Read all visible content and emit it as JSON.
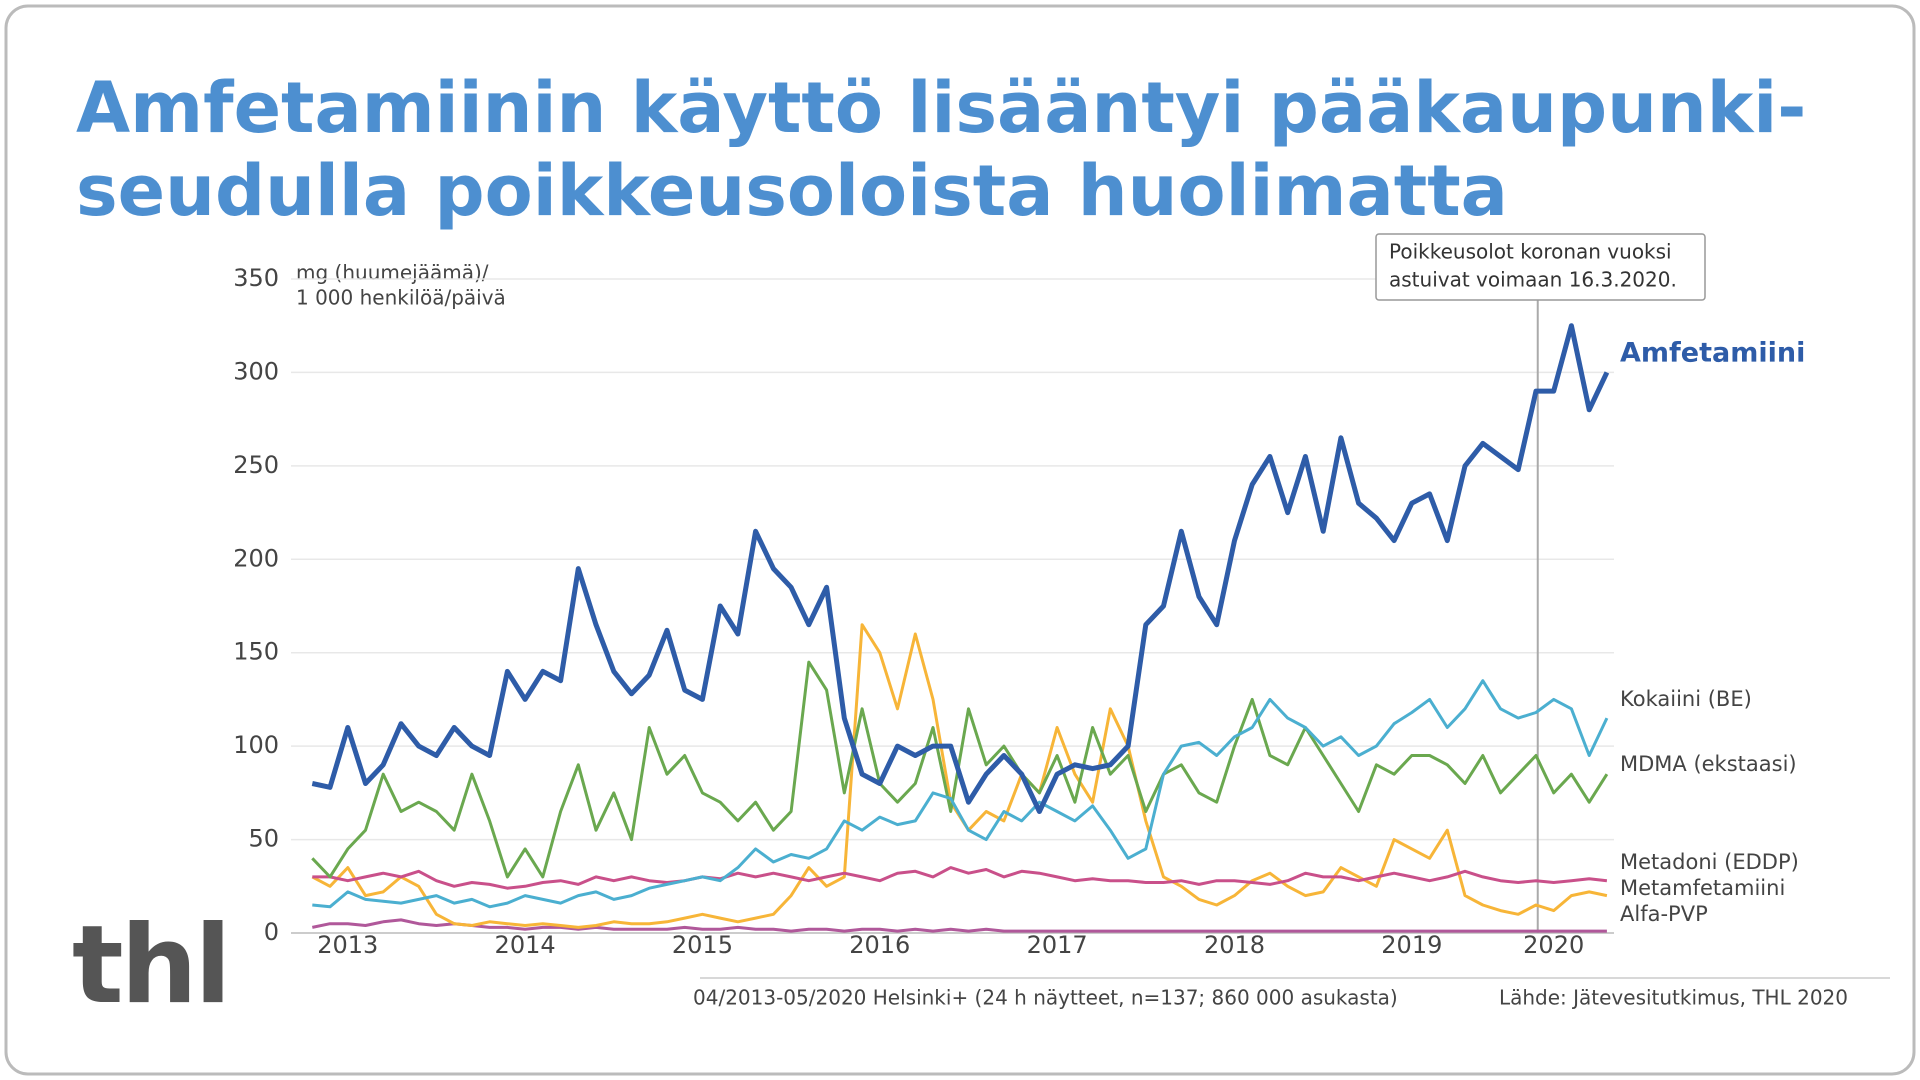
{
  "chart_data": {
    "type": "line",
    "title": [
      "Amfetamiinin käyttö lisääntyi pääkaupunki-",
      "seudulla poikkeusoloista huolimatta"
    ],
    "ylabel": [
      "mg (huumejäämä)/",
      "1 000 henkilöä/päivä"
    ],
    "annotation": {
      "text": [
        "Poikkeusolot koronan vuoksi",
        "astuivat voimaan 16.3.2020."
      ],
      "x": 2020.21
    },
    "note": "04/2013-05/2020 Helsinki+ (24 h näytteet, n=137; 860 000 asukasta)",
    "source": "Lähde: Jätevesitutkimus, THL 2020",
    "logo": "thl",
    "xlim": [
      2013.18,
      2020.64
    ],
    "ylim": [
      0,
      350
    ],
    "yticks": [
      0,
      50,
      100,
      150,
      200,
      250,
      300,
      350
    ],
    "xticks": [
      {
        "value": 2013.5,
        "label": "2013"
      },
      {
        "value": 2014.5,
        "label": "2014"
      },
      {
        "value": 2015.5,
        "label": "2015"
      },
      {
        "value": 2016.5,
        "label": "2016"
      },
      {
        "value": 2017.5,
        "label": "2017"
      },
      {
        "value": 2018.5,
        "label": "2018"
      },
      {
        "value": 2019.5,
        "label": "2019"
      },
      {
        "value": 2020.3,
        "label": "2020"
      }
    ],
    "grid": true,
    "x": [
      2013.3,
      2013.4,
      2013.5,
      2013.6,
      2013.7,
      2013.8,
      2013.9,
      2014.0,
      2014.1,
      2014.2,
      2014.3,
      2014.4,
      2014.5,
      2014.6,
      2014.7,
      2014.8,
      2014.9,
      2015.0,
      2015.1,
      2015.2,
      2015.3,
      2015.4,
      2015.5,
      2015.6,
      2015.7,
      2015.8,
      2015.9,
      2016.0,
      2016.1,
      2016.2,
      2016.3,
      2016.4,
      2016.5,
      2016.6,
      2016.7,
      2016.8,
      2016.9,
      2017.0,
      2017.1,
      2017.2,
      2017.3,
      2017.4,
      2017.5,
      2017.6,
      2017.7,
      2017.8,
      2017.9,
      2018.0,
      2018.1,
      2018.2,
      2018.3,
      2018.4,
      2018.5,
      2018.6,
      2018.7,
      2018.8,
      2018.9,
      2019.0,
      2019.1,
      2019.2,
      2019.3,
      2019.4,
      2019.5,
      2019.6,
      2019.7,
      2019.8,
      2019.9,
      2020.0,
      2020.1,
      2020.2,
      2020.3,
      2020.4,
      2020.5,
      2020.6
    ],
    "series": [
      {
        "name": "Amfetamiini",
        "color": "#2e5ca8",
        "values": [
          80,
          78,
          110,
          80,
          90,
          112,
          100,
          95,
          110,
          100,
          95,
          140,
          125,
          140,
          135,
          195,
          165,
          140,
          128,
          138,
          162,
          130,
          125,
          175,
          160,
          215,
          195,
          185,
          165,
          185,
          115,
          85,
          80,
          100,
          95,
          100,
          100,
          70,
          85,
          95,
          85,
          65,
          85,
          90,
          88,
          90,
          100,
          165,
          175,
          215,
          180,
          165,
          210,
          240,
          255,
          225,
          255,
          215,
          265,
          230,
          222,
          210,
          230,
          235,
          210,
          250,
          262,
          255,
          248,
          290,
          290,
          325,
          280,
          300
        ]
      },
      {
        "name": "Kokaiini (BE)",
        "color": "#4bafd0",
        "values": [
          15,
          14,
          22,
          18,
          17,
          16,
          18,
          20,
          16,
          18,
          14,
          16,
          20,
          18,
          16,
          20,
          22,
          18,
          20,
          24,
          26,
          28,
          30,
          28,
          35,
          45,
          38,
          42,
          40,
          45,
          60,
          55,
          62,
          58,
          60,
          75,
          72,
          55,
          50,
          65,
          60,
          70,
          65,
          60,
          68,
          55,
          40,
          45,
          85,
          100,
          102,
          95,
          105,
          110,
          125,
          115,
          110,
          100,
          105,
          95,
          100,
          112,
          118,
          125,
          110,
          120,
          135,
          120,
          115,
          118,
          125,
          120,
          95,
          115
        ]
      },
      {
        "name": "MDMA (ekstaasi)",
        "color": "#6aa84f",
        "values": [
          40,
          30,
          45,
          55,
          85,
          65,
          70,
          65,
          55,
          85,
          60,
          30,
          45,
          30,
          65,
          90,
          55,
          75,
          50,
          110,
          85,
          95,
          75,
          70,
          60,
          70,
          55,
          65,
          145,
          130,
          75,
          120,
          80,
          70,
          80,
          110,
          65,
          120,
          90,
          100,
          85,
          75,
          95,
          70,
          110,
          85,
          95,
          65,
          85,
          90,
          75,
          70,
          100,
          125,
          95,
          90,
          110,
          95,
          80,
          65,
          90,
          85,
          95,
          95,
          90,
          80,
          95,
          75,
          85,
          95,
          75,
          85,
          70,
          85
        ]
      },
      {
        "name": "Metadoni (EDDP)",
        "color": "#c9508a",
        "values": [
          30,
          30,
          28,
          30,
          32,
          30,
          33,
          28,
          25,
          27,
          26,
          24,
          25,
          27,
          28,
          26,
          30,
          28,
          30,
          28,
          27,
          28,
          30,
          29,
          32,
          30,
          32,
          30,
          28,
          30,
          32,
          30,
          28,
          32,
          33,
          30,
          35,
          32,
          34,
          30,
          33,
          32,
          30,
          28,
          29,
          28,
          28,
          27,
          27,
          28,
          26,
          28,
          28,
          27,
          26,
          28,
          32,
          30,
          30,
          28,
          30,
          32,
          30,
          28,
          30,
          33,
          30,
          28,
          27,
          28,
          27,
          28,
          29,
          28
        ]
      },
      {
        "name": "Metamfetamiini",
        "color": "#f7b538",
        "values": [
          30,
          25,
          35,
          20,
          22,
          30,
          25,
          10,
          5,
          4,
          6,
          5,
          4,
          5,
          4,
          3,
          4,
          6,
          5,
          5,
          6,
          8,
          10,
          8,
          6,
          8,
          10,
          20,
          35,
          25,
          30,
          165,
          150,
          120,
          160,
          125,
          70,
          55,
          65,
          60,
          85,
          75,
          110,
          85,
          70,
          120,
          100,
          60,
          30,
          25,
          18,
          15,
          20,
          28,
          32,
          25,
          20,
          22,
          35,
          30,
          25,
          50,
          45,
          40,
          55,
          20,
          15,
          12,
          10,
          15,
          12,
          20,
          22,
          20
        ]
      },
      {
        "name": "Alfa-PVP",
        "color": "#b0589a",
        "values": [
          3,
          5,
          5,
          4,
          6,
          7,
          5,
          4,
          5,
          4,
          3,
          3,
          2,
          3,
          3,
          2,
          3,
          2,
          2,
          2,
          2,
          3,
          2,
          2,
          3,
          2,
          2,
          1,
          2,
          2,
          1,
          2,
          2,
          1,
          2,
          1,
          2,
          1,
          2,
          1,
          1,
          1,
          1,
          1,
          1,
          1,
          1,
          1,
          1,
          1,
          1,
          1,
          1,
          1,
          1,
          1,
          1,
          1,
          1,
          1,
          1,
          1,
          1,
          1,
          1,
          1,
          1,
          1,
          1,
          1,
          1,
          1,
          1,
          1
        ]
      }
    ]
  }
}
